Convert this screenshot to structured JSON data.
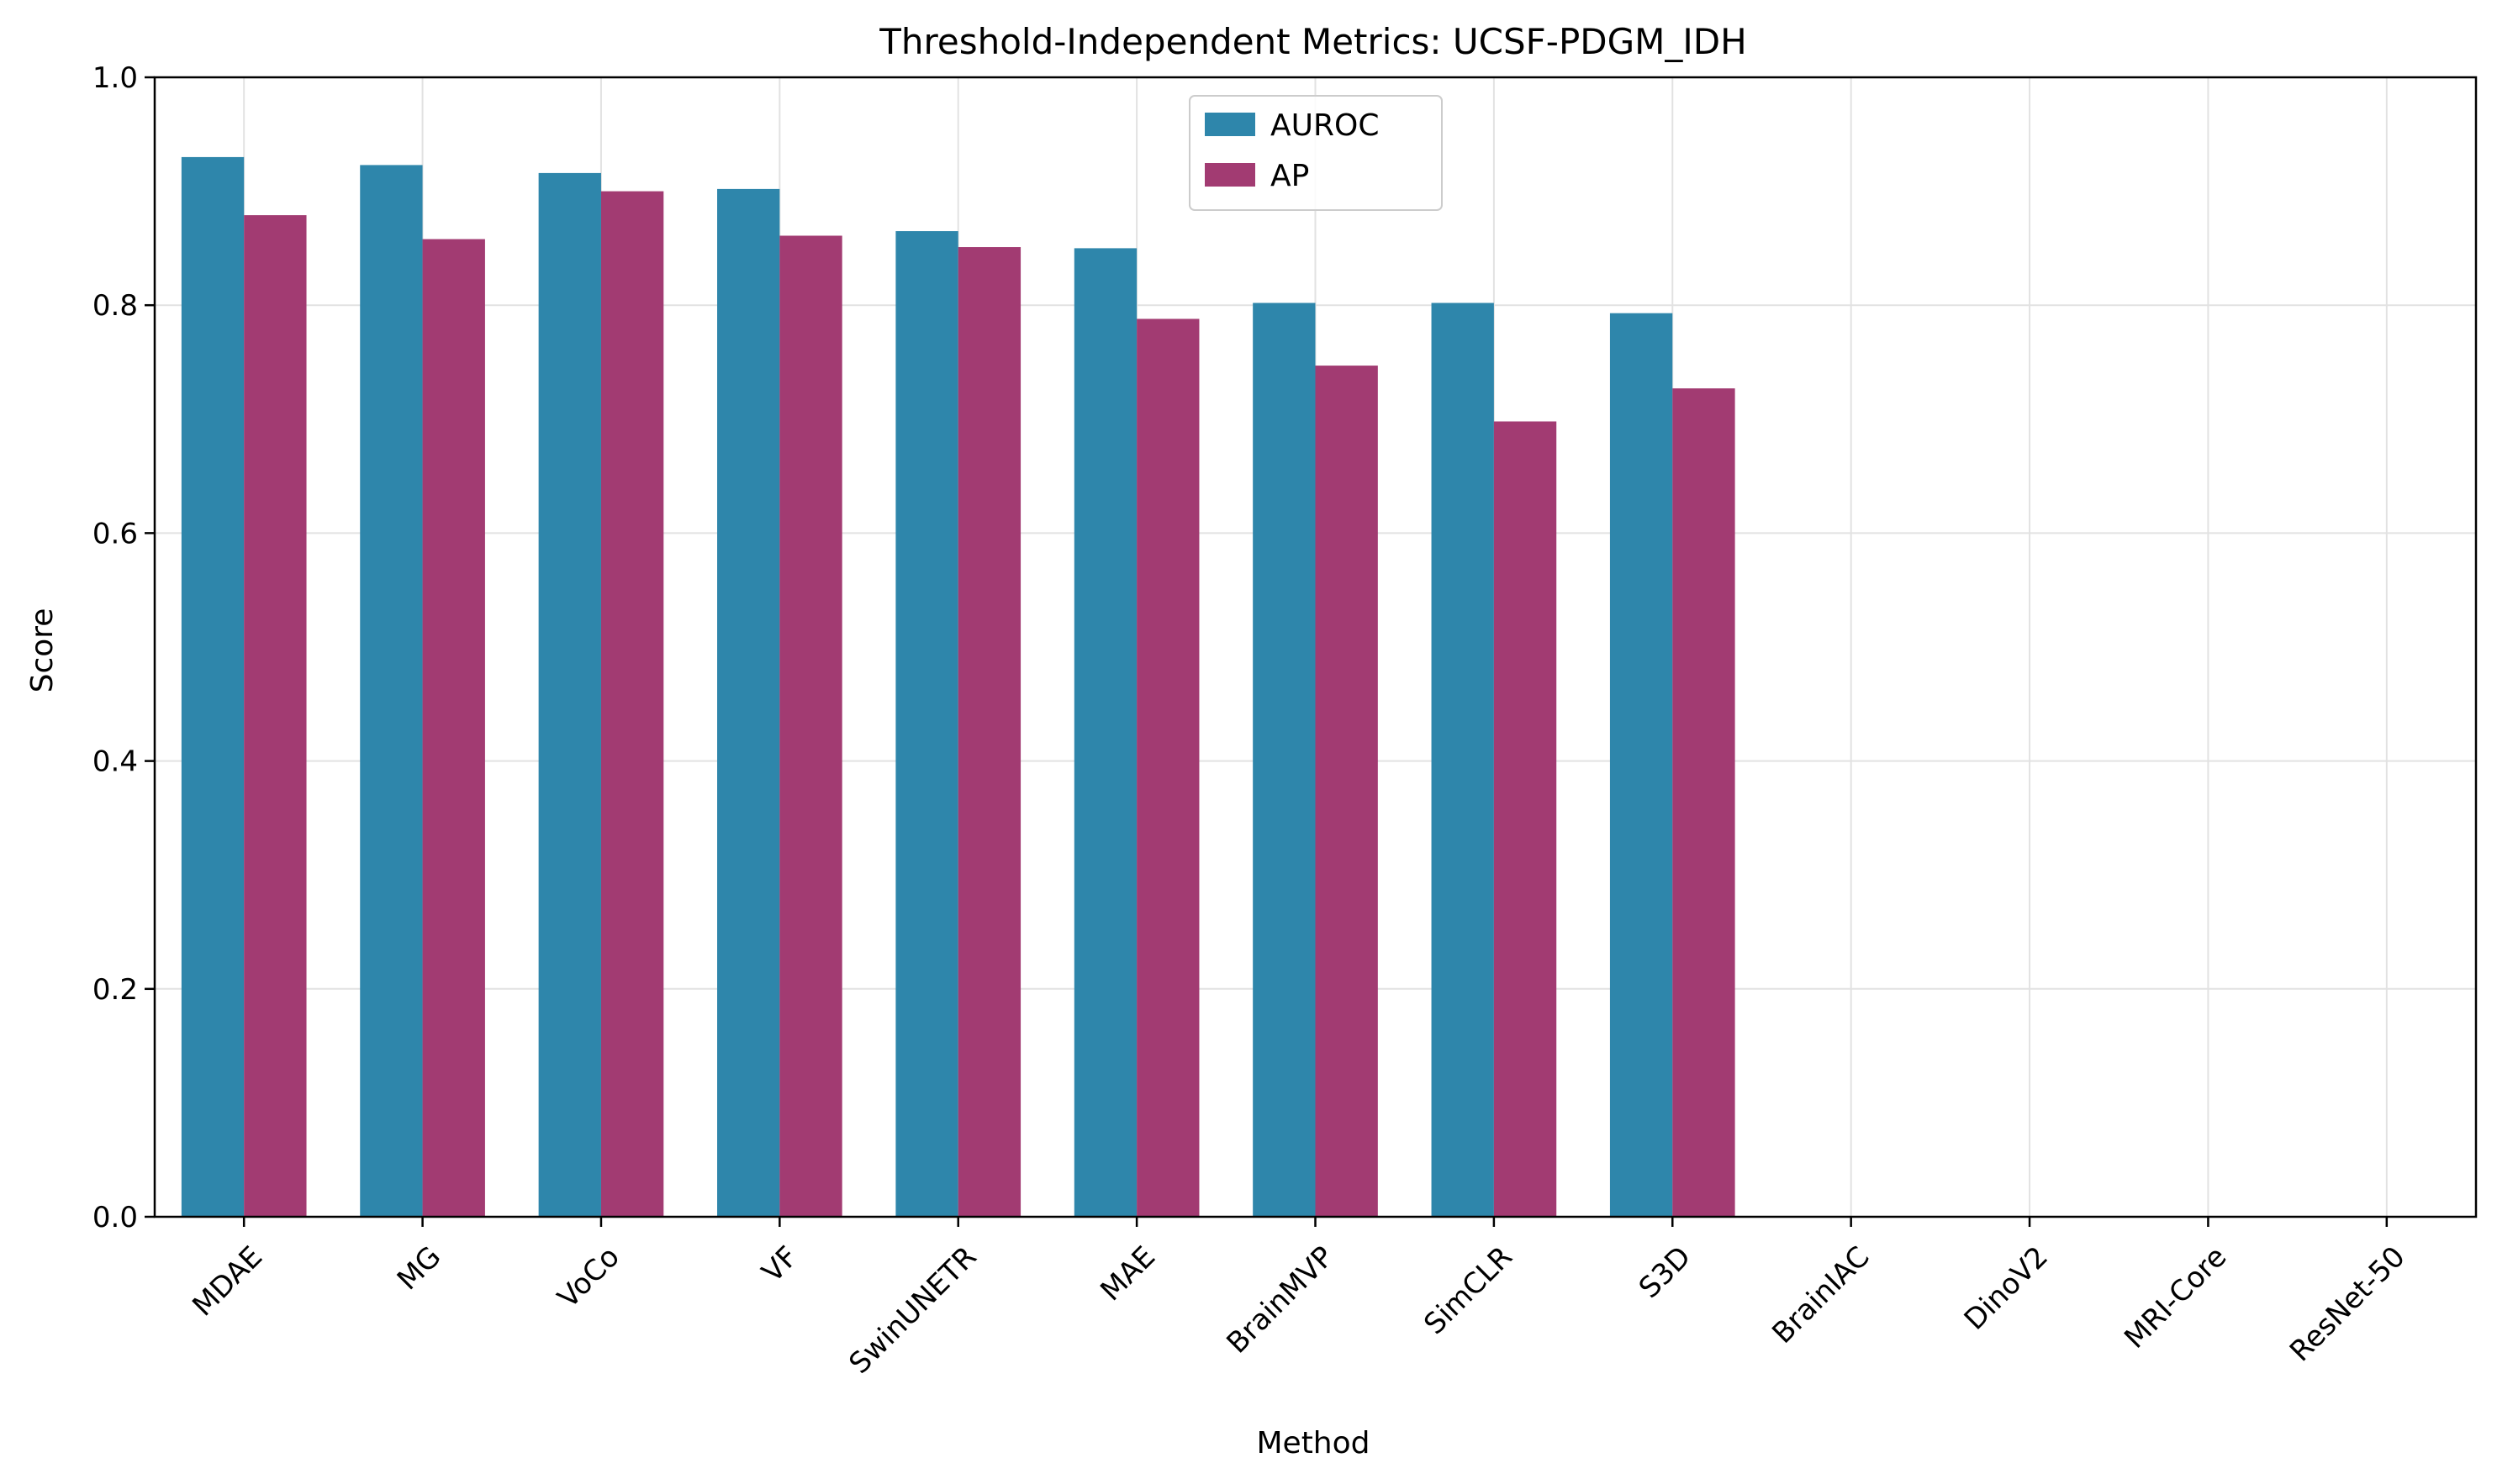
{
  "chart_data": {
    "type": "bar",
    "title": "Threshold-Independent Metrics: UCSF-PDGM_IDH",
    "xlabel": "Method",
    "ylabel": "Score",
    "ylim": [
      0,
      1.0
    ],
    "yticks": [
      "0.0",
      "0.2",
      "0.4",
      "0.6",
      "0.8",
      "1.0"
    ],
    "grid": true,
    "legend_position": "top-center",
    "categories": [
      "MDAE",
      "MG",
      "VoCo",
      "VF",
      "SwinUNETR",
      "MAE",
      "BrainMVP",
      "SimCLR",
      "S3D",
      "BrainIAC",
      "DinoV2",
      "MRI-Core",
      "ResNet-50"
    ],
    "series": [
      {
        "name": "AUROC",
        "color": "#2e86ab",
        "values": [
          0.93,
          0.923,
          0.916,
          0.902,
          0.865,
          0.85,
          0.802,
          0.802,
          0.793,
          null,
          null,
          null,
          null
        ]
      },
      {
        "name": "AP",
        "color": "#a23b72",
        "values": [
          0.879,
          0.858,
          0.9,
          0.861,
          0.851,
          0.788,
          0.747,
          0.698,
          0.727,
          null,
          null,
          null,
          null
        ]
      }
    ]
  }
}
